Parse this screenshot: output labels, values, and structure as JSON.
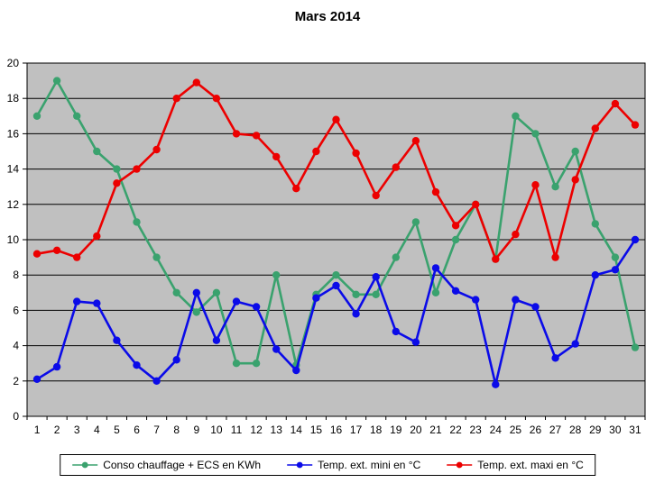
{
  "chart_data": {
    "type": "line",
    "title": "Mars 2014",
    "x_categories": [
      "1",
      "2",
      "3",
      "4",
      "5",
      "6",
      "7",
      "8",
      "9",
      "10",
      "11",
      "12",
      "13",
      "14",
      "15",
      "16",
      "17",
      "18",
      "19",
      "20",
      "21",
      "22",
      "23",
      "24",
      "25",
      "26",
      "27",
      "28",
      "29",
      "30",
      "31"
    ],
    "xlabel": "",
    "ylabel": "",
    "ylim": [
      0,
      20
    ],
    "ytick_step": 2,
    "grid": "horizontal",
    "plot_background": "#c0c0c0",
    "grid_color": "#000000",
    "legend_position": "bottom-center",
    "series": [
      {
        "name": "Conso chauffage + ECS en KWh",
        "color": "#3aa26e",
        "values": [
          17,
          19,
          17,
          15,
          14,
          11,
          9,
          7,
          5.9,
          7,
          3,
          3,
          8,
          2.9,
          6.9,
          8,
          6.9,
          6.9,
          9,
          11,
          7,
          10,
          12,
          8.9,
          17,
          16,
          13,
          15,
          10.9,
          9,
          3.9
        ]
      },
      {
        "name": "Temp. ext. mini en °C",
        "color": "#0b0be8",
        "values": [
          2.1,
          2.8,
          6.5,
          6.4,
          4.3,
          2.9,
          2,
          3.2,
          7,
          4.3,
          6.5,
          6.2,
          3.8,
          2.6,
          6.7,
          7.4,
          5.8,
          7.9,
          4.8,
          4.2,
          8.4,
          7.1,
          6.6,
          1.8,
          6.6,
          6.2,
          3.3,
          4.1,
          8,
          8.3,
          10
        ]
      },
      {
        "name": "Temp. ext. maxi en °C",
        "color": "#ec0000",
        "values": [
          9.2,
          9.4,
          9,
          10.2,
          13.2,
          14,
          15.1,
          18,
          18.9,
          18,
          16,
          15.9,
          14.7,
          12.9,
          15,
          16.8,
          14.9,
          12.5,
          14.1,
          15.6,
          12.7,
          10.8,
          12,
          8.9,
          10.3,
          13.1,
          9,
          13.4,
          16.3,
          17.7,
          16.5
        ]
      }
    ]
  }
}
